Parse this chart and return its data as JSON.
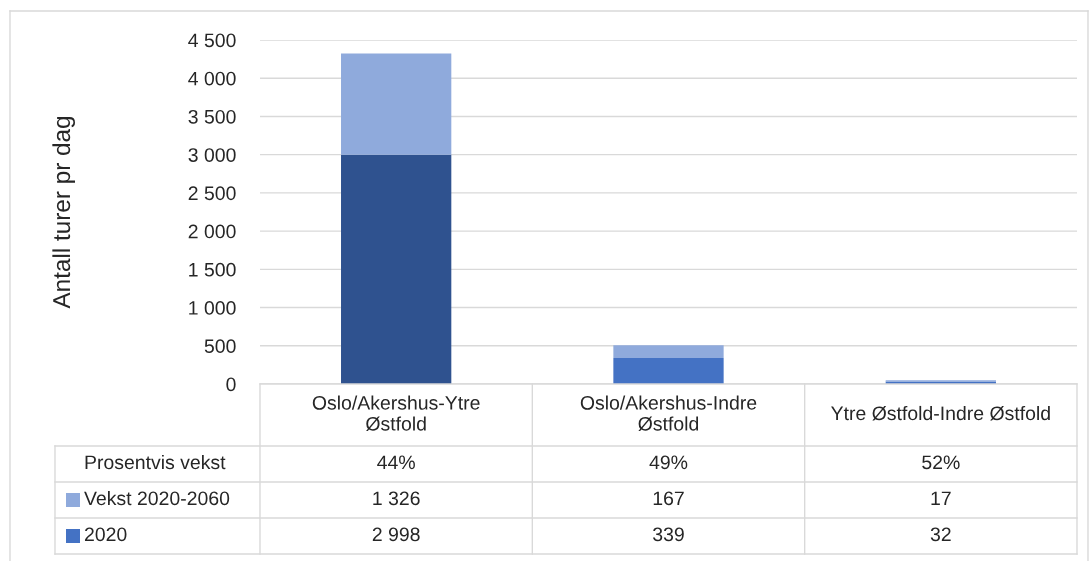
{
  "chart_data": {
    "type": "bar",
    "ylabel": "Antall turer pr dag",
    "categories": [
      "Oslo/Akershus-Ytre Østfold",
      "Oslo/Akershus-Indre Østfold",
      "Ytre Østfold-Indre Østfold"
    ],
    "series": [
      {
        "name": "2020",
        "color": "#4472c4",
        "colors": [
          "#2f528f",
          "#4472c4",
          "#4472c4"
        ],
        "values": [
          2998,
          339,
          32
        ],
        "value_labels": [
          "2 998",
          "339",
          "32"
        ]
      },
      {
        "name": "Vekst 2020-2060",
        "color": "#8faadc",
        "values": [
          1326,
          167,
          17
        ],
        "value_labels": [
          "1 326",
          "167",
          "17"
        ]
      }
    ],
    "stacked": true,
    "ylim": [
      0,
      4500
    ],
    "yticks": [
      0,
      500,
      {
        "value": 1000,
        "label": "1 000"
      },
      {
        "value": 1500,
        "label": "1 500"
      },
      {
        "value": 2000,
        "label": "2 000"
      },
      {
        "value": 2500,
        "label": "2 500"
      },
      {
        "value": 3000,
        "label": "3 000"
      },
      {
        "value": 3500,
        "label": "3 500"
      },
      {
        "value": 4000,
        "label": "4 000"
      },
      {
        "value": 4500,
        "label": "4 500"
      }
    ],
    "grid": "y",
    "legend": "bottom",
    "annotations": [
      "Prosentvis vekst",
      "44%",
      "49%",
      "52%"
    ]
  }
}
